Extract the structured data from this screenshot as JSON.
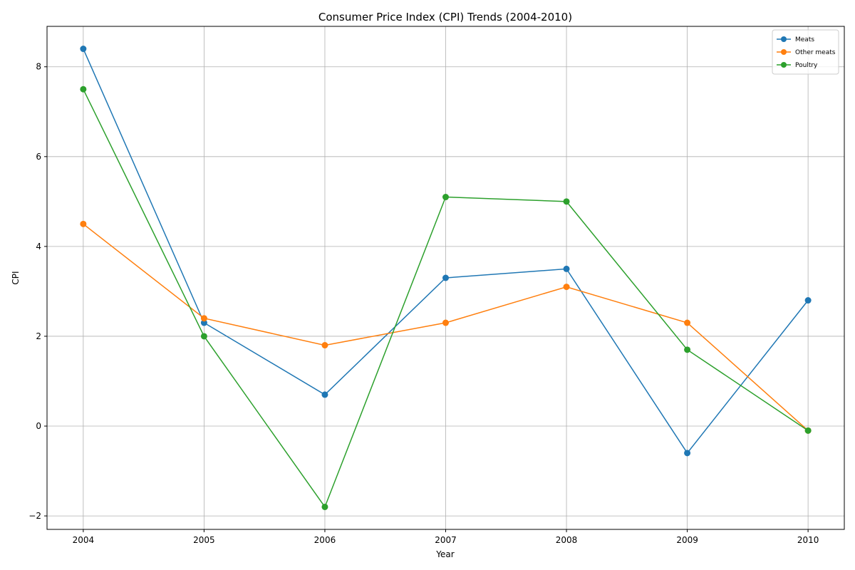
{
  "chart_data": {
    "type": "line",
    "title": "Consumer Price Index (CPI) Trends (2004-2010)",
    "xlabel": "Year",
    "ylabel": "CPI",
    "x": [
      2004,
      2005,
      2006,
      2007,
      2008,
      2009,
      2010
    ],
    "x_ticks": [
      "2004",
      "2005",
      "2006",
      "2007",
      "2008",
      "2009",
      "2010"
    ],
    "y_ticks": [
      -2,
      0,
      2,
      4,
      6,
      8
    ],
    "xlim": [
      2003.7,
      2010.3
    ],
    "ylim": [
      -2.3,
      8.9
    ],
    "grid": true,
    "legend_position": "upper right",
    "series": [
      {
        "name": "Meats",
        "color": "#1f77b4",
        "values": [
          8.4,
          2.3,
          0.7,
          3.3,
          3.5,
          -0.6,
          2.8
        ]
      },
      {
        "name": "Other meats",
        "color": "#ff7f0e",
        "values": [
          4.5,
          2.4,
          1.8,
          2.3,
          3.1,
          2.3,
          -0.1
        ]
      },
      {
        "name": "Poultry",
        "color": "#2ca02c",
        "values": [
          7.5,
          2.0,
          -1.8,
          5.1,
          5.0,
          1.7,
          -0.1
        ]
      }
    ]
  }
}
